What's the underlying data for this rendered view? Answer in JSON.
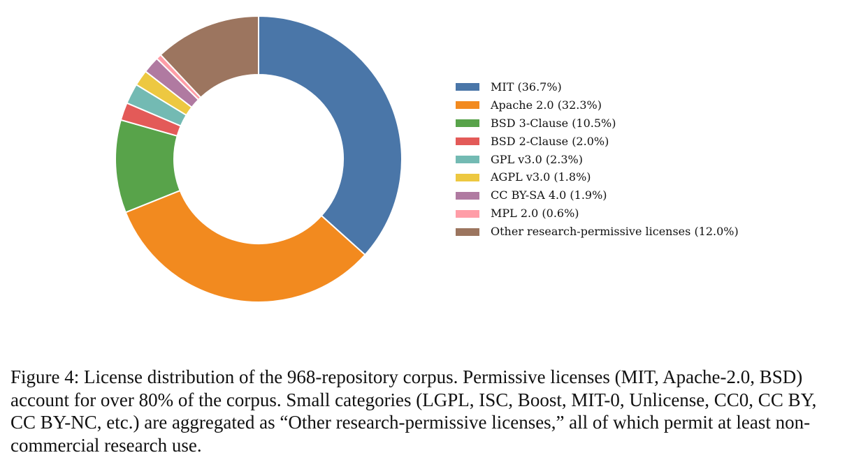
{
  "chart_data": {
    "type": "pie",
    "style": "donut",
    "title": "",
    "slices": [
      {
        "label": "MIT (36.7%)",
        "name": "MIT",
        "value": 36.7,
        "color": "#4a76a8"
      },
      {
        "label": "Apache 2.0 (32.3%)",
        "name": "Apache 2.0",
        "value": 32.3,
        "color": "#f28a1f"
      },
      {
        "label": "BSD 3-Clause (10.5%)",
        "name": "BSD 3-Clause",
        "value": 10.5,
        "color": "#58a34a"
      },
      {
        "label": "BSD 2-Clause (2.0%)",
        "name": "BSD 2-Clause",
        "value": 2.0,
        "color": "#e35a58"
      },
      {
        "label": "GPL v3.0 (2.3%)",
        "name": "GPL v3.0",
        "value": 2.3,
        "color": "#73bab3"
      },
      {
        "label": "AGPL v3.0 (1.8%)",
        "name": "AGPL v3.0",
        "value": 1.8,
        "color": "#edc841"
      },
      {
        "label": "CC BY-SA 4.0 (1.9%)",
        "name": "CC BY-SA 4.0",
        "value": 1.9,
        "color": "#b07aa1"
      },
      {
        "label": "MPL 2.0 (0.6%)",
        "name": "MPL 2.0",
        "value": 0.6,
        "color": "#ff9da7"
      },
      {
        "label": "Other research-permissive licenses (12.0%)",
        "name": "Other research-permissive licenses",
        "value": 12.0,
        "color": "#9c755f"
      }
    ],
    "legend_position": "right"
  },
  "caption": "Figure 4: License distribution of the 968-repository corpus. Permissive licenses (MIT, Apache-2.0, BSD) account for over 80% of the corpus. Small categories (LGPL, ISC, Boost, MIT-0, Unlicense, CC0, CC BY, CC BY-NC, etc.) are aggregated as “Other research-permissive licenses,” all of which permit at least non-commercial research use."
}
